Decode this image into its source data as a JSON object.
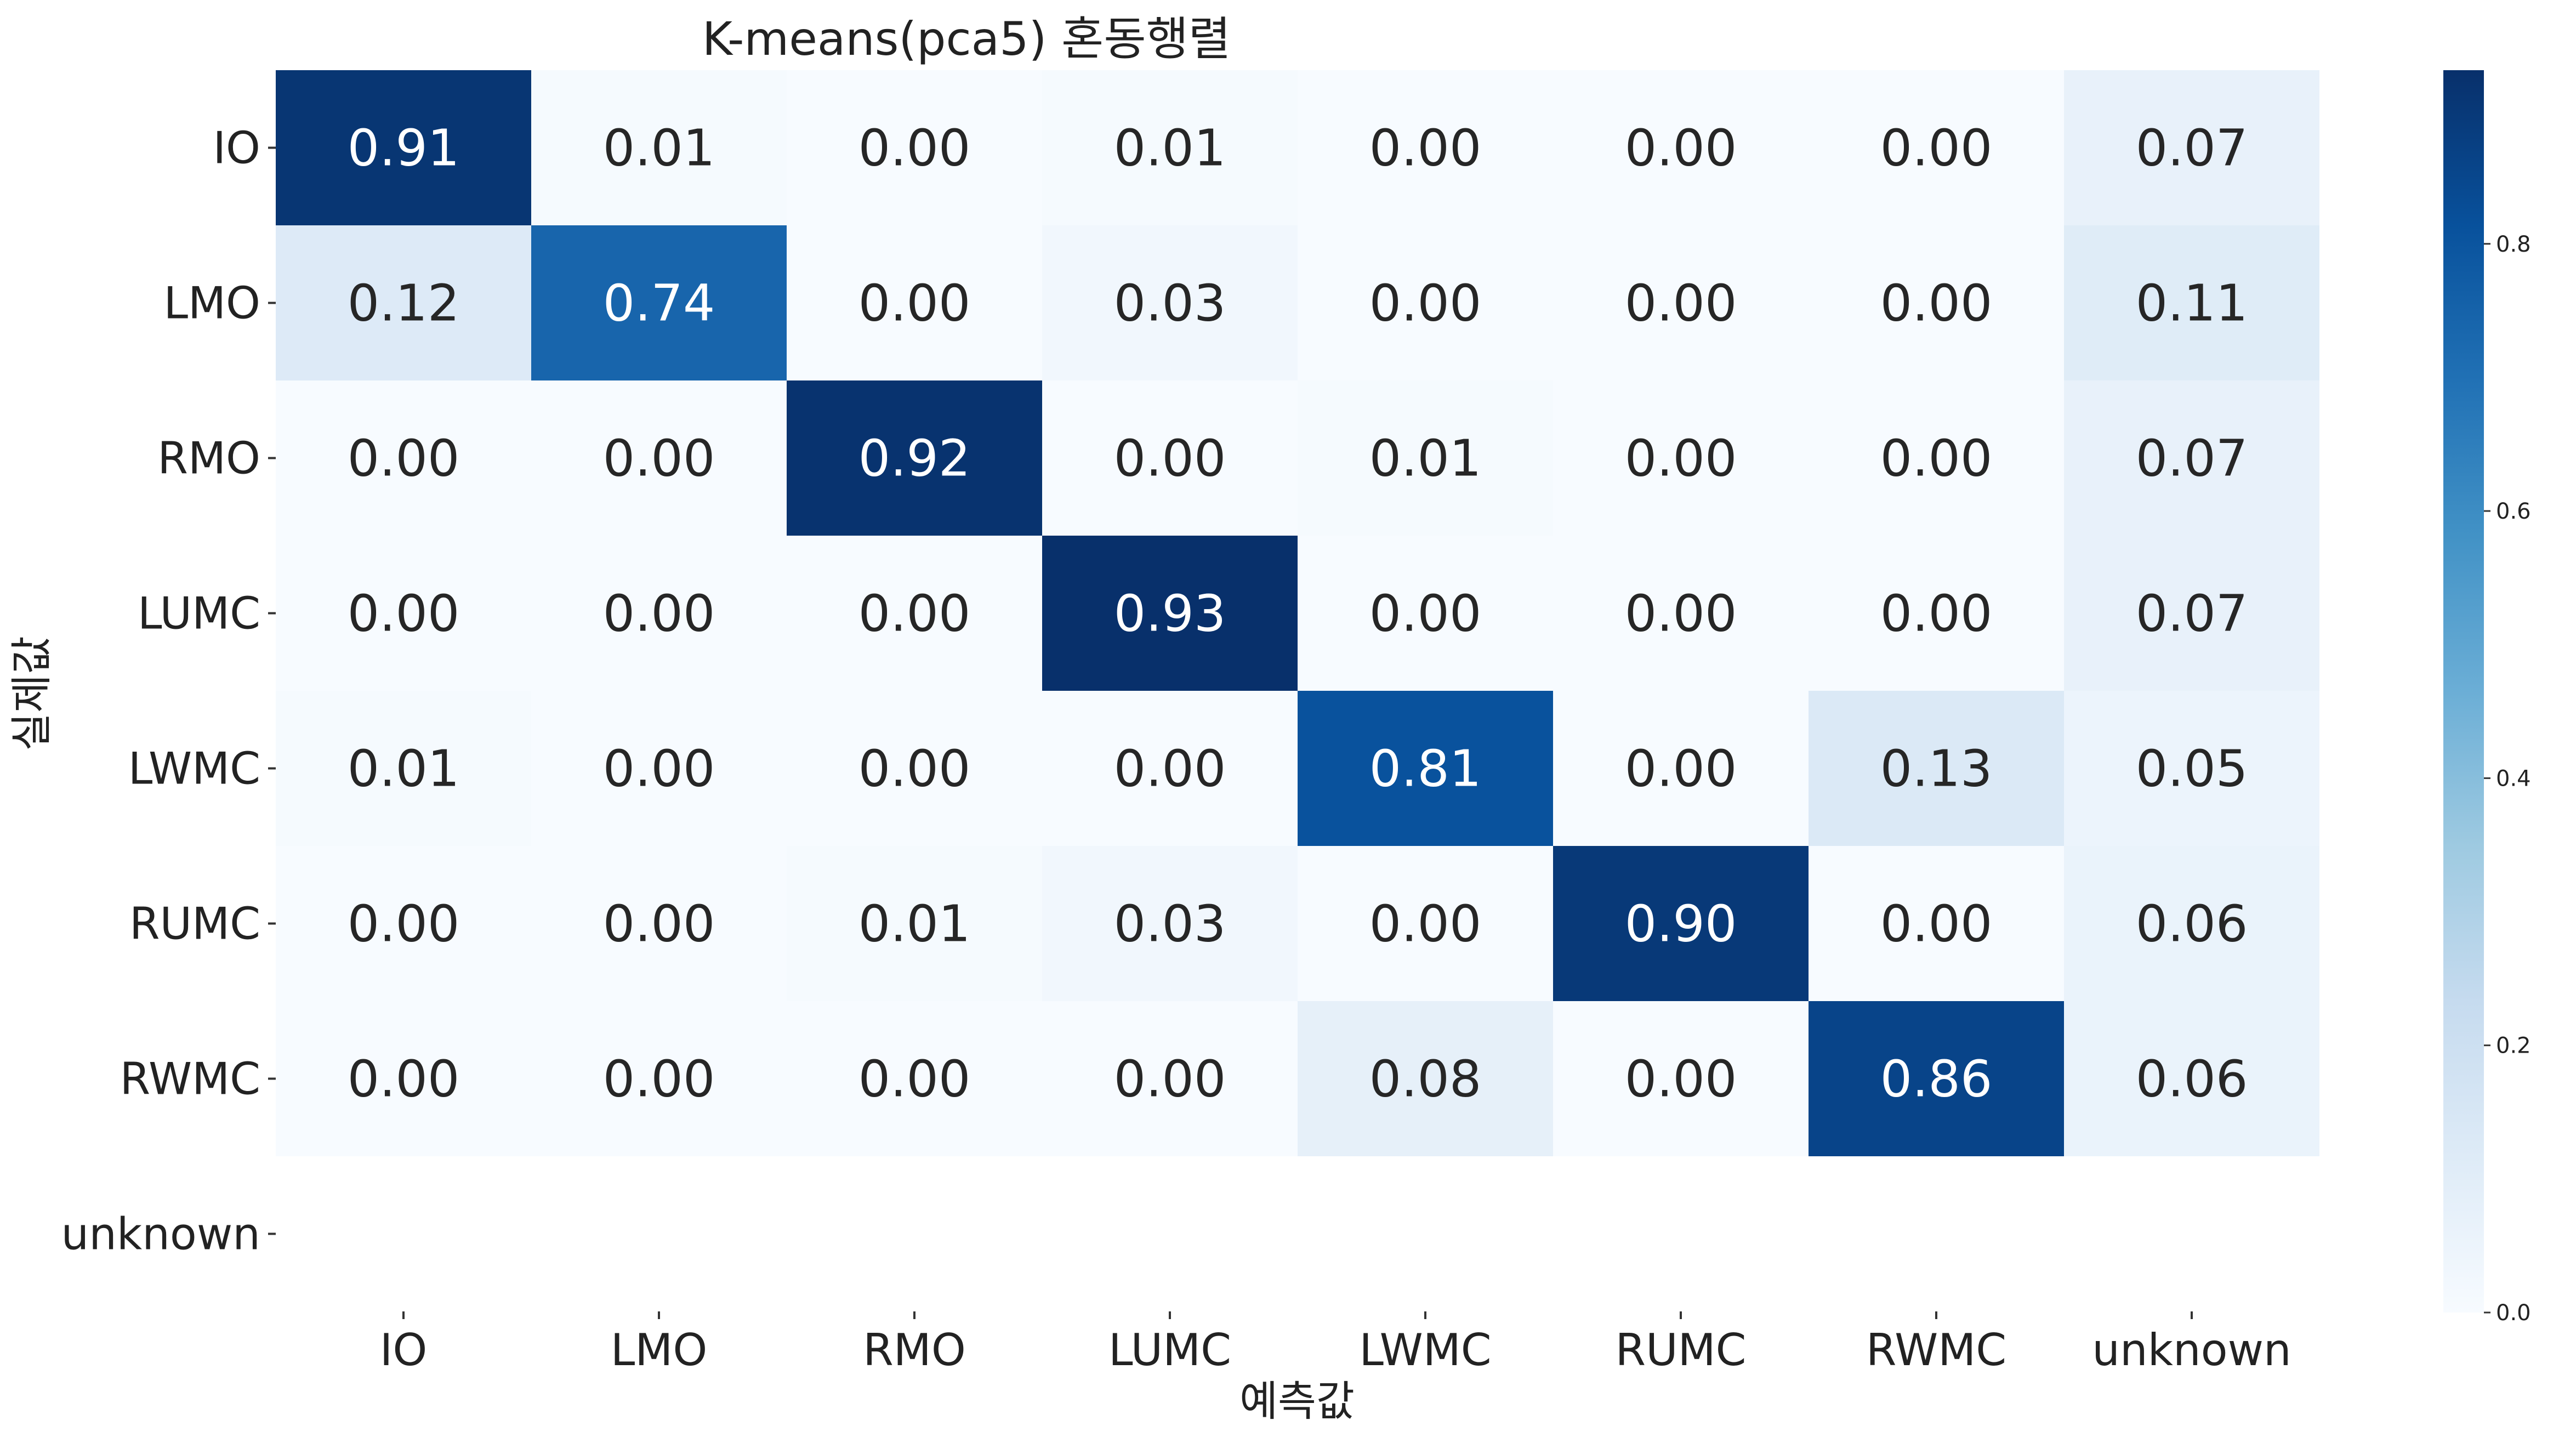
{
  "chart_data": {
    "type": "heatmap",
    "title": "K-means(pca5) 혼동행렬",
    "xlabel": "예측값",
    "ylabel": "실제값",
    "x_categories": [
      "IO",
      "LMO",
      "RMO",
      "LUMC",
      "LWMC",
      "RUMC",
      "RWMC",
      "unknown"
    ],
    "y_categories": [
      "IO",
      "LMO",
      "RMO",
      "LUMC",
      "LWMC",
      "RUMC",
      "RWMC",
      "unknown"
    ],
    "values": [
      [
        0.91,
        0.01,
        0.0,
        0.01,
        0.0,
        0.0,
        0.0,
        0.07
      ],
      [
        0.12,
        0.74,
        0.0,
        0.03,
        0.0,
        0.0,
        0.0,
        0.11
      ],
      [
        0.0,
        0.0,
        0.92,
        0.0,
        0.01,
        0.0,
        0.0,
        0.07
      ],
      [
        0.0,
        0.0,
        0.0,
        0.93,
        0.0,
        0.0,
        0.0,
        0.07
      ],
      [
        0.01,
        0.0,
        0.0,
        0.0,
        0.81,
        0.0,
        0.13,
        0.05
      ],
      [
        0.0,
        0.0,
        0.01,
        0.03,
        0.0,
        0.9,
        0.0,
        0.06
      ],
      [
        0.0,
        0.0,
        0.0,
        0.0,
        0.08,
        0.0,
        0.86,
        0.06
      ],
      [
        null,
        null,
        null,
        null,
        null,
        null,
        null,
        null
      ]
    ],
    "colormap": "Blues",
    "colorbar": {
      "range": [
        0.0,
        0.93
      ],
      "ticks": [
        "0.0",
        "0.2",
        "0.4",
        "0.6",
        "0.8"
      ]
    }
  }
}
